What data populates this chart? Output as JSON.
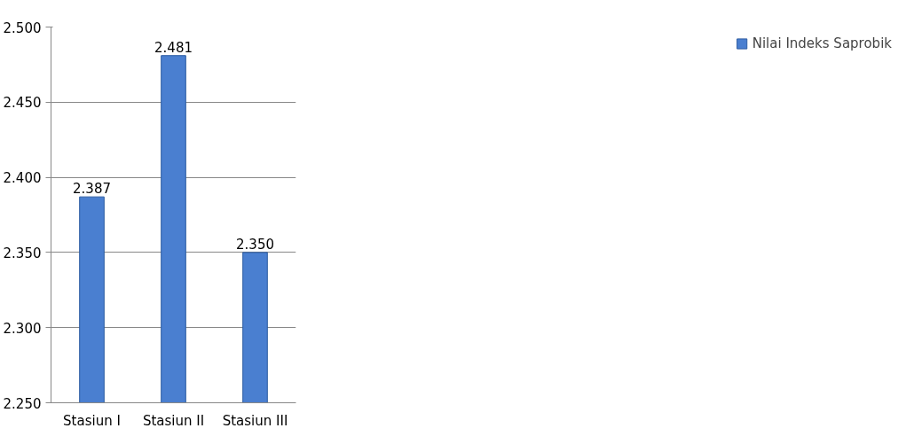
{
  "chart_data": {
    "type": "bar",
    "categories": [
      "Stasiun I",
      "Stasiun II",
      "Stasiun III"
    ],
    "series": [
      {
        "name": "Nilai Indeks Saprobik",
        "color": "#4a7fd0",
        "values": [
          2.387,
          2.481,
          2.35
        ],
        "value_labels": [
          "2.387",
          "2.481",
          "2.350"
        ]
      }
    ],
    "ylim": [
      2.25,
      2.5
    ],
    "yticks": [
      {
        "value": 2.25,
        "label": "2.250"
      },
      {
        "value": 2.3,
        "label": "2.300"
      },
      {
        "value": 2.35,
        "label": "2.350"
      },
      {
        "value": 2.4,
        "label": "2.400"
      },
      {
        "value": 2.45,
        "label": "2.450"
      },
      {
        "value": 2.5,
        "label": "2.500"
      }
    ],
    "grid": "y",
    "legend": "right"
  }
}
